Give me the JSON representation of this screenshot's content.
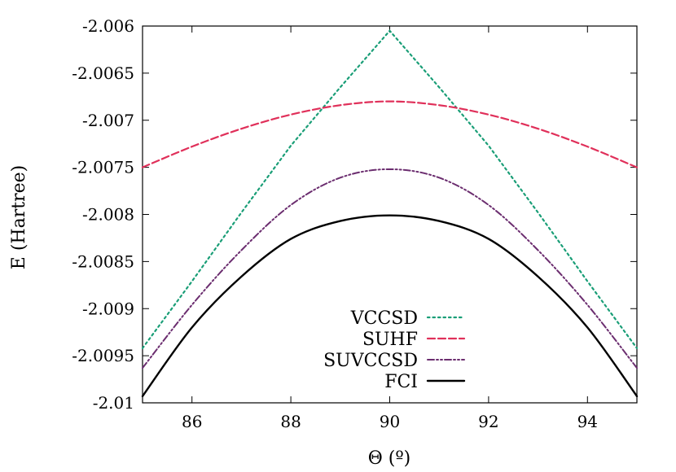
{
  "chart_data": {
    "type": "line",
    "title": "",
    "xlabel": "Θ (º)",
    "ylabel": "E (Hartree)",
    "xlim": [
      85,
      95
    ],
    "ylim": [
      -2.01,
      -2.006
    ],
    "x_ticks": [
      86,
      88,
      90,
      92,
      94
    ],
    "x_tick_labels": [
      "86",
      "88",
      "90",
      "92",
      "94"
    ],
    "y_ticks": [
      -2.006,
      -2.0065,
      -2.007,
      -2.0075,
      -2.008,
      -2.0085,
      -2.009,
      -2.0095,
      -2.01
    ],
    "y_tick_labels": [
      "-2.006",
      "-2.0065",
      "-2.007",
      "-2.0075",
      "-2.008",
      "-2.0085",
      "-2.009",
      "-2.0095",
      "-2.01"
    ],
    "grid": false,
    "legend_position": "bottom-center",
    "x": [
      85,
      86,
      87,
      88,
      89,
      90,
      91,
      92,
      93,
      94,
      95
    ],
    "series": [
      {
        "name": "VCCSD",
        "color": "#1a9e77",
        "dash": "dotted",
        "values": [
          -2.00942,
          -2.00871,
          -2.00798,
          -2.00727,
          -2.00665,
          -2.00605,
          -2.00665,
          -2.00727,
          -2.00798,
          -2.00871,
          -2.00942
        ]
      },
      {
        "name": "SUHF",
        "color": "#e0305a",
        "dash": "dashed",
        "values": [
          -2.0075,
          -2.00728,
          -2.00709,
          -2.00694,
          -2.00684,
          -2.0068,
          -2.00684,
          -2.00694,
          -2.00709,
          -2.00728,
          -2.0075
        ]
      },
      {
        "name": "SUVCCSD",
        "color": "#6b2d6f",
        "dash": "dash-dot-dot",
        "values": [
          -2.00963,
          -2.00896,
          -2.00838,
          -2.0079,
          -2.00761,
          -2.00752,
          -2.00761,
          -2.0079,
          -2.00838,
          -2.00896,
          -2.00963
        ]
      },
      {
        "name": "FCI",
        "color": "#000000",
        "dash": "solid",
        "values": [
          -2.00993,
          -2.0092,
          -2.00866,
          -2.00826,
          -2.00807,
          -2.00801,
          -2.00807,
          -2.00826,
          -2.00866,
          -2.0092,
          -2.00993
        ]
      }
    ]
  }
}
